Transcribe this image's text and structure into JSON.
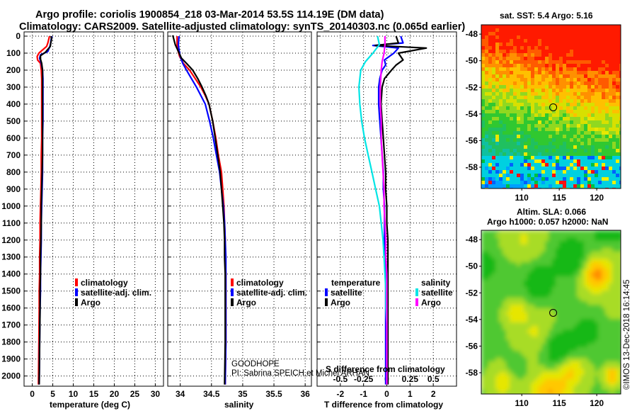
{
  "title": {
    "line1": "Argo profile: coriolis 1900854_218 03-Mar-2014 53.5S 114.19E (DM data)",
    "line2": "Climatology: CARS2009. Satellite-adjusted climatology: synTS_20140303.nc (0.065d earlier)"
  },
  "colors": {
    "climatology": "#ff0000",
    "satellite": "#0000ff",
    "argo": "#000000",
    "temp_satellite": "#0000ff",
    "temp_argo": "#000000",
    "sal_satellite": "#00e5e5",
    "sal_argo": "#ff00ff"
  },
  "y_axis": {
    "range": [
      2060,
      -25
    ],
    "ticks": [
      0,
      100,
      200,
      300,
      400,
      500,
      600,
      700,
      800,
      900,
      1000,
      1100,
      1200,
      1300,
      1400,
      1500,
      1600,
      1700,
      1800,
      1900,
      2000
    ],
    "tick_labels": [
      "0",
      "100",
      "200",
      "300",
      "400",
      "500",
      "600",
      "700",
      "800",
      "900",
      "1000",
      "1100",
      "1200",
      "1300",
      "1400",
      "1500",
      "1600",
      "1700",
      "1800",
      "1900",
      "2000"
    ]
  },
  "chart_data": [
    {
      "type": "line",
      "name": "temperature profile",
      "xlabel": "temperature (deg C)",
      "xlim": [
        -2,
        32
      ],
      "xticks": [
        0,
        5,
        10,
        15,
        20,
        25,
        30
      ],
      "xtick_labels": [
        "0",
        "5",
        "10",
        "15",
        "20",
        "25",
        "30"
      ],
      "series": [
        {
          "name": "climatology",
          "x": [
            4.2,
            4.0,
            3.8,
            3.5,
            1.6,
            1.2,
            1.3,
            2.0,
            2.2,
            2.3,
            2.3,
            2.3,
            2.3,
            2.3,
            2.2,
            2.2,
            2.1,
            2.0,
            1.9,
            1.9,
            1.8,
            1.8,
            1.7,
            1.7,
            1.6,
            1.5
          ],
          "depth": [
            0,
            20,
            40,
            60,
            100,
            120,
            140,
            160,
            200,
            250,
            300,
            400,
            500,
            600,
            700,
            800,
            900,
            1000,
            1100,
            1200,
            1300,
            1400,
            1500,
            1600,
            1800,
            2050
          ]
        },
        {
          "name": "satellite-adj. clim.",
          "x": [
            4.8,
            4.6,
            4.5,
            4.3,
            3.8,
            2.0,
            1.8,
            2.2,
            2.5,
            2.6,
            2.6,
            2.6,
            2.6,
            2.5,
            2.5,
            2.5,
            2.4,
            2.3,
            2.2,
            2.2,
            2.1,
            2.0,
            2.0,
            1.9,
            1.8,
            1.7
          ],
          "depth": [
            0,
            20,
            40,
            60,
            90,
            110,
            130,
            160,
            200,
            250,
            300,
            400,
            500,
            600,
            700,
            800,
            900,
            1000,
            1100,
            1200,
            1300,
            1400,
            1500,
            1600,
            1800,
            2050
          ]
        },
        {
          "name": "Argo",
          "x": [
            4.6,
            4.7,
            4.5,
            4.4,
            3.2,
            2.0,
            2.0,
            2.3,
            2.5,
            2.5,
            2.5,
            2.5,
            2.5,
            2.5,
            2.5,
            2.4,
            2.3,
            2.2,
            2.2,
            2.1,
            2.0,
            2.0,
            1.9,
            1.9,
            1.8,
            1.7
          ],
          "depth": [
            0,
            20,
            40,
            60,
            95,
            115,
            135,
            160,
            200,
            250,
            300,
            400,
            500,
            600,
            700,
            800,
            900,
            1000,
            1100,
            1200,
            1300,
            1400,
            1500,
            1600,
            1800,
            2050
          ]
        }
      ],
      "legend": [
        "climatology",
        "satellite-adj. clim.",
        "Argo"
      ]
    },
    {
      "type": "line",
      "name": "salinity profile",
      "xlabel": "salinity",
      "xlim": [
        33.8,
        36.1
      ],
      "xticks": [
        34,
        34.5,
        35,
        35.5,
        36
      ],
      "xtick_labels": [
        "34",
        "34.5",
        "35",
        "35.5",
        "36"
      ],
      "series": [
        {
          "name": "climatology",
          "x": [
            33.95,
            33.95,
            33.96,
            33.99,
            34.05,
            34.15,
            34.24,
            34.33,
            34.4,
            34.46,
            34.52,
            34.57,
            34.61,
            34.66,
            34.68,
            34.7,
            34.71,
            34.72,
            34.72,
            34.73,
            34.73,
            34.73,
            34.73,
            34.73,
            34.72
          ],
          "depth": [
            0,
            50,
            80,
            120,
            160,
            200,
            250,
            300,
            350,
            400,
            500,
            600,
            700,
            800,
            900,
            1000,
            1100,
            1200,
            1300,
            1400,
            1500,
            1600,
            1700,
            1800,
            2050
          ]
        },
        {
          "name": "satellite-adj. clim.",
          "x": [
            33.98,
            33.97,
            33.98,
            34.0,
            34.04,
            34.1,
            34.18,
            34.26,
            34.33,
            34.4,
            34.47,
            34.53,
            34.58,
            34.63,
            34.66,
            34.69,
            34.71,
            34.72,
            34.73,
            34.73,
            34.73,
            34.73,
            34.73,
            34.73,
            34.72
          ],
          "depth": [
            0,
            50,
            80,
            120,
            160,
            200,
            250,
            300,
            350,
            400,
            500,
            600,
            700,
            800,
            900,
            1000,
            1100,
            1200,
            1300,
            1400,
            1500,
            1600,
            1700,
            1800,
            2050
          ]
        },
        {
          "name": "Argo",
          "x": [
            33.88,
            33.92,
            33.97,
            34.02,
            34.1,
            34.2,
            34.28,
            34.35,
            34.41,
            34.46,
            34.52,
            34.56,
            34.6,
            34.64,
            34.66,
            34.68,
            34.7,
            34.71,
            34.71,
            34.72,
            34.72,
            34.72,
            34.72,
            34.72,
            34.71
          ],
          "depth": [
            -5,
            50,
            90,
            130,
            160,
            200,
            250,
            300,
            350,
            400,
            500,
            600,
            700,
            800,
            900,
            1000,
            1100,
            1200,
            1300,
            1400,
            1500,
            1600,
            1700,
            1800,
            2050
          ]
        }
      ],
      "legend": [
        "climatology",
        "satellite-adj. clim.",
        "Argo"
      ],
      "annotations": [
        "GOODHOPE",
        "PI: Sabrina SPEICH,et Michel ARHAN"
      ]
    },
    {
      "type": "line",
      "name": "difference from climatology",
      "xlabel": "T difference from climatology",
      "xlim": [
        -3,
        3
      ],
      "xticks": [
        -2,
        -1,
        0,
        1,
        2
      ],
      "xtick_labels": [
        "-2",
        "-1",
        "0",
        "1",
        "2"
      ],
      "top_xlabel": "S difference from climatology",
      "top_xticks": [
        -0.5,
        -0.25,
        0,
        0.25,
        0.5
      ],
      "top_xtick_labels": [
        "-0.5",
        "-0.25",
        "0",
        "0.25",
        "0.5"
      ],
      "series": [
        {
          "name": "temperature satellite",
          "x": [
            0.6,
            0.7,
            -0.6,
            0.5,
            0.3,
            -0.1,
            -0.05,
            -0.2,
            -0.3,
            -0.35,
            -0.35,
            -0.3,
            -0.25,
            -0.2,
            -0.15,
            -0.15,
            -0.1,
            -0.1,
            -0.1,
            -0.05,
            -0.05,
            -0.05,
            -0.05,
            -0.05,
            -0.05,
            -0.05
          ],
          "depth": [
            0,
            40,
            55,
            70,
            100,
            140,
            170,
            200,
            250,
            300,
            400,
            500,
            600,
            700,
            800,
            900,
            1000,
            1100,
            1200,
            1300,
            1400,
            1500,
            1600,
            1700,
            1800,
            2050
          ]
        },
        {
          "name": "temperature Argo",
          "x": [
            0.4,
            0.5,
            -0.5,
            1.7,
            0.5,
            0.7,
            0.4,
            0.2,
            -0.1,
            -0.2,
            -0.25,
            -0.2,
            -0.15,
            -0.1,
            -0.05,
            -0.05,
            0.0,
            0.0,
            0.05,
            0.05,
            0.05,
            0.05,
            0.05,
            0.05,
            0.05,
            0.05
          ],
          "depth": [
            0,
            40,
            55,
            70,
            100,
            140,
            170,
            200,
            250,
            300,
            400,
            500,
            600,
            700,
            800,
            900,
            1000,
            1100,
            1200,
            1300,
            1400,
            1500,
            1600,
            1700,
            1800,
            2050
          ]
        },
        {
          "name": "salinity satellite",
          "x": [
            -0.1,
            -0.08,
            -0.15,
            -0.23,
            -0.28,
            -0.3,
            -0.29,
            -0.27,
            -0.24,
            -0.2,
            -0.16,
            -0.12,
            -0.08,
            -0.06,
            -0.04,
            -0.03,
            -0.02,
            -0.01,
            -0.01,
            0.0,
            0.0,
            0.0
          ],
          "depth": [
            0,
            50,
            100,
            150,
            200,
            300,
            400,
            500,
            600,
            700,
            800,
            900,
            1000,
            1100,
            1200,
            1300,
            1400,
            1500,
            1600,
            1700,
            1800,
            2050
          ]
        },
        {
          "name": "salinity Argo",
          "x": [
            -0.02,
            -0.02,
            -0.03,
            -0.05,
            -0.06,
            -0.07,
            -0.07,
            -0.06,
            -0.06,
            -0.05,
            -0.04,
            -0.03,
            -0.03,
            -0.02,
            -0.01,
            -0.01,
            0.0,
            0.0,
            0.0,
            0.0,
            0.0,
            0.0
          ],
          "depth": [
            0,
            50,
            100,
            150,
            200,
            300,
            400,
            500,
            600,
            700,
            800,
            900,
            1000,
            1100,
            1200,
            1300,
            1400,
            1500,
            1600,
            1700,
            1800,
            2050
          ]
        }
      ],
      "legend_titles": [
        "temperature",
        "salinity"
      ],
      "legend": [
        "satellite",
        "Argo",
        "satellite",
        "Argo"
      ]
    }
  ],
  "maps": [
    {
      "title": "sat. SST: 5.4 Argo: 5.16",
      "lat_ticks": [
        "-48",
        "-50",
        "-52",
        "-54",
        "-56",
        "-58"
      ],
      "lon_ticks": [
        "110",
        "115",
        "120"
      ],
      "marker": {
        "lon": 114.19,
        "lat": -53.5
      }
    },
    {
      "title_line1": "Altim. SLA: 0.066",
      "title_line2": "Argo h1000: 0.057 h2000: NaN",
      "lat_ticks": [
        "-48",
        "-50",
        "-52",
        "-54",
        "-56",
        "-58"
      ],
      "lon_ticks": [
        "110",
        "115",
        "120"
      ],
      "marker": {
        "lon": 114.19,
        "lat": -53.5
      }
    }
  ],
  "credit": "©IMOS 13-Dec-2018 16:14:45"
}
